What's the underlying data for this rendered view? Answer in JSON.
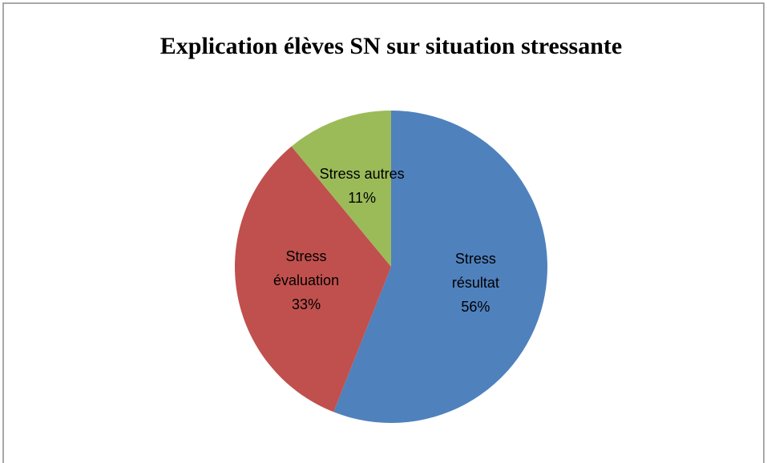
{
  "chart_data": {
    "type": "pie",
    "title": "Explication élèves SN sur situation stressante",
    "categories": [
      "Stress résultat",
      "Stress évaluation",
      "Stress autres"
    ],
    "values": [
      56,
      33,
      11
    ],
    "value_labels": [
      "56%",
      "33%",
      "11%"
    ],
    "colors": [
      "#4f81bd",
      "#c0504d",
      "#9bbb59"
    ]
  }
}
